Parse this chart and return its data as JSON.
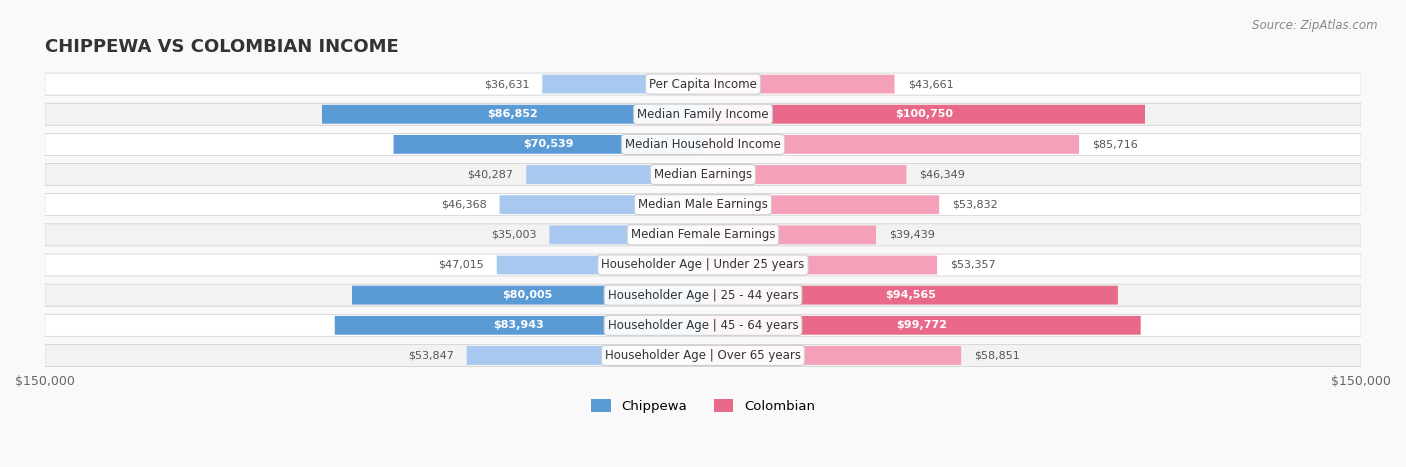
{
  "title": "CHIPPEWA VS COLOMBIAN INCOME",
  "source": "Source: ZipAtlas.com",
  "categories": [
    "Per Capita Income",
    "Median Family Income",
    "Median Household Income",
    "Median Earnings",
    "Median Male Earnings",
    "Median Female Earnings",
    "Householder Age | Under 25 years",
    "Householder Age | 25 - 44 years",
    "Householder Age | 45 - 64 years",
    "Householder Age | Over 65 years"
  ],
  "chippewa_values": [
    36631,
    86852,
    70539,
    40287,
    46368,
    35003,
    47015,
    80005,
    83943,
    53847
  ],
  "colombian_values": [
    43661,
    100750,
    85716,
    46349,
    53832,
    39439,
    53357,
    94565,
    99772,
    58851
  ],
  "chippewa_labels": [
    "$36,631",
    "$86,852",
    "$70,539",
    "$40,287",
    "$46,368",
    "$35,003",
    "$47,015",
    "$80,005",
    "$83,943",
    "$53,847"
  ],
  "colombian_labels": [
    "$43,661",
    "$100,750",
    "$85,716",
    "$46,349",
    "$53,832",
    "$39,439",
    "$53,357",
    "$94,565",
    "$99,772",
    "$58,851"
  ],
  "chippewa_color_light": "#a8c8f0",
  "chippewa_color_dark": "#5b9bd5",
  "colombian_color_light": "#f4a0b8",
  "colombian_color_dark": "#e8698a",
  "max_val": 150000,
  "background_color": "#f5f5f5",
  "row_bg": "#ffffff",
  "row_alt_bg": "#f0f0f0",
  "label_fontsize": 9.5,
  "title_fontsize": 14,
  "highlight_chippewa": [
    1,
    2,
    7,
    8
  ],
  "highlight_colombian": [
    1,
    7,
    8
  ]
}
